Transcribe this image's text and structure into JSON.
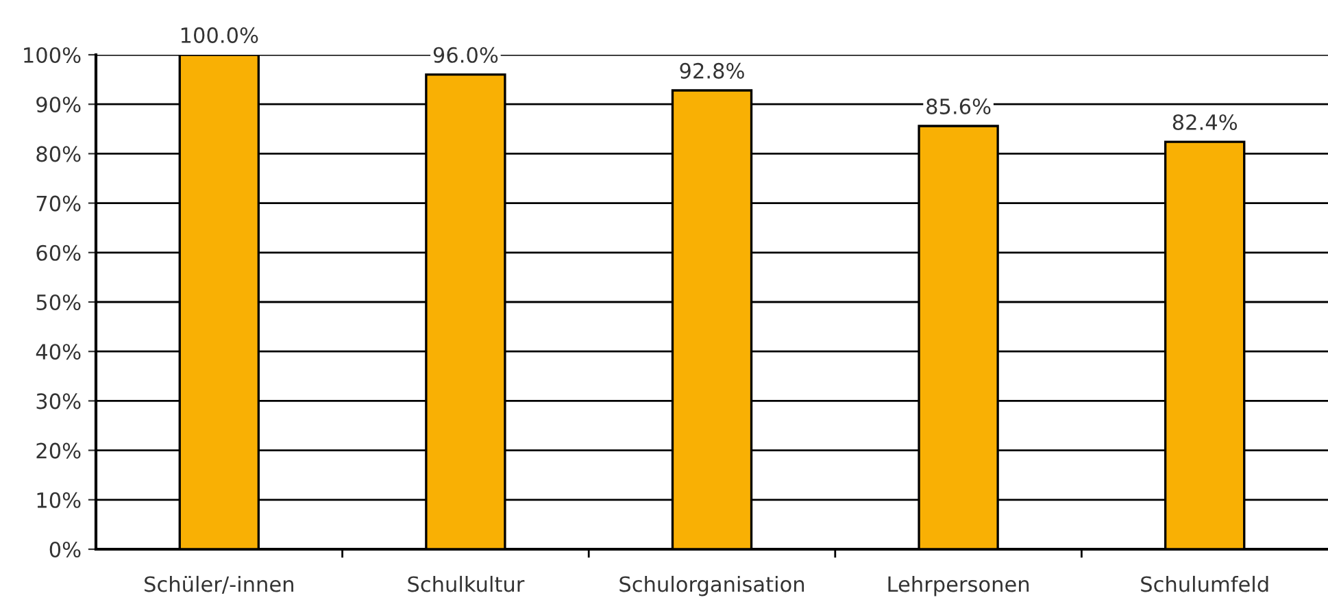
{
  "chart_data": {
    "type": "bar",
    "categories": [
      "Schüler/-innen",
      "Schulkultur",
      "Schulorganisation",
      "Lehrpersonen",
      "Schulumfeld"
    ],
    "values": [
      100.0,
      96.0,
      92.8,
      85.6,
      82.4
    ],
    "value_labels": [
      "100.0%",
      "96.0%",
      "92.8%",
      "85.6%",
      "82.4%"
    ],
    "color": "#f9b004",
    "ylim": [
      0,
      100
    ],
    "yticks": [
      {
        "value": 0,
        "label": "0%"
      },
      {
        "value": 10,
        "label": "10%"
      },
      {
        "value": 20,
        "label": "20%"
      },
      {
        "value": 30,
        "label": "30%"
      },
      {
        "value": 40,
        "label": "40%"
      },
      {
        "value": 50,
        "label": "50%"
      },
      {
        "value": 60,
        "label": "60%"
      },
      {
        "value": 70,
        "label": "70%"
      },
      {
        "value": 80,
        "label": "80%"
      },
      {
        "value": 90,
        "label": "90%"
      },
      {
        "value": 100,
        "label": "100%"
      }
    ],
    "grid": "y",
    "legend": false
  }
}
